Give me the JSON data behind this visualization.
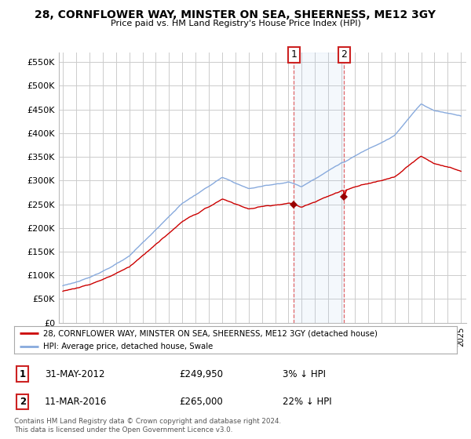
{
  "title": "28, CORNFLOWER WAY, MINSTER ON SEA, SHEERNESS, ME12 3GY",
  "subtitle": "Price paid vs. HM Land Registry's House Price Index (HPI)",
  "ylabel_ticks": [
    "£0",
    "£50K",
    "£100K",
    "£150K",
    "£200K",
    "£250K",
    "£300K",
    "£350K",
    "£400K",
    "£450K",
    "£500K",
    "£550K"
  ],
  "ytick_values": [
    0,
    50000,
    100000,
    150000,
    200000,
    250000,
    300000,
    350000,
    400000,
    450000,
    500000,
    550000
  ],
  "ylim": [
    0,
    570000
  ],
  "line_color_property": "#cc0000",
  "line_color_hpi": "#88aadd",
  "marker_color_property": "#990000",
  "bg_color": "#ffffff",
  "grid_color": "#cccccc",
  "legend_label_property": "28, CORNFLOWER WAY, MINSTER ON SEA, SHEERNESS, ME12 3GY (detached house)",
  "legend_label_hpi": "HPI: Average price, detached house, Swale",
  "annotation1": {
    "num": "1",
    "date": "31-MAY-2012",
    "price": "£249,950",
    "pct": "3% ↓ HPI"
  },
  "annotation2": {
    "num": "2",
    "date": "11-MAR-2016",
    "price": "£265,000",
    "pct": "22% ↓ HPI"
  },
  "footer": "Contains HM Land Registry data © Crown copyright and database right 2024.\nThis data is licensed under the Open Government Licence v3.0.",
  "sale1_x": 2012.41,
  "sale1_y": 249950,
  "sale2_x": 2016.19,
  "sale2_y": 265000,
  "vline1_x": 2012.41,
  "vline2_x": 2016.19,
  "xmin": 1995,
  "xmax": 2025
}
